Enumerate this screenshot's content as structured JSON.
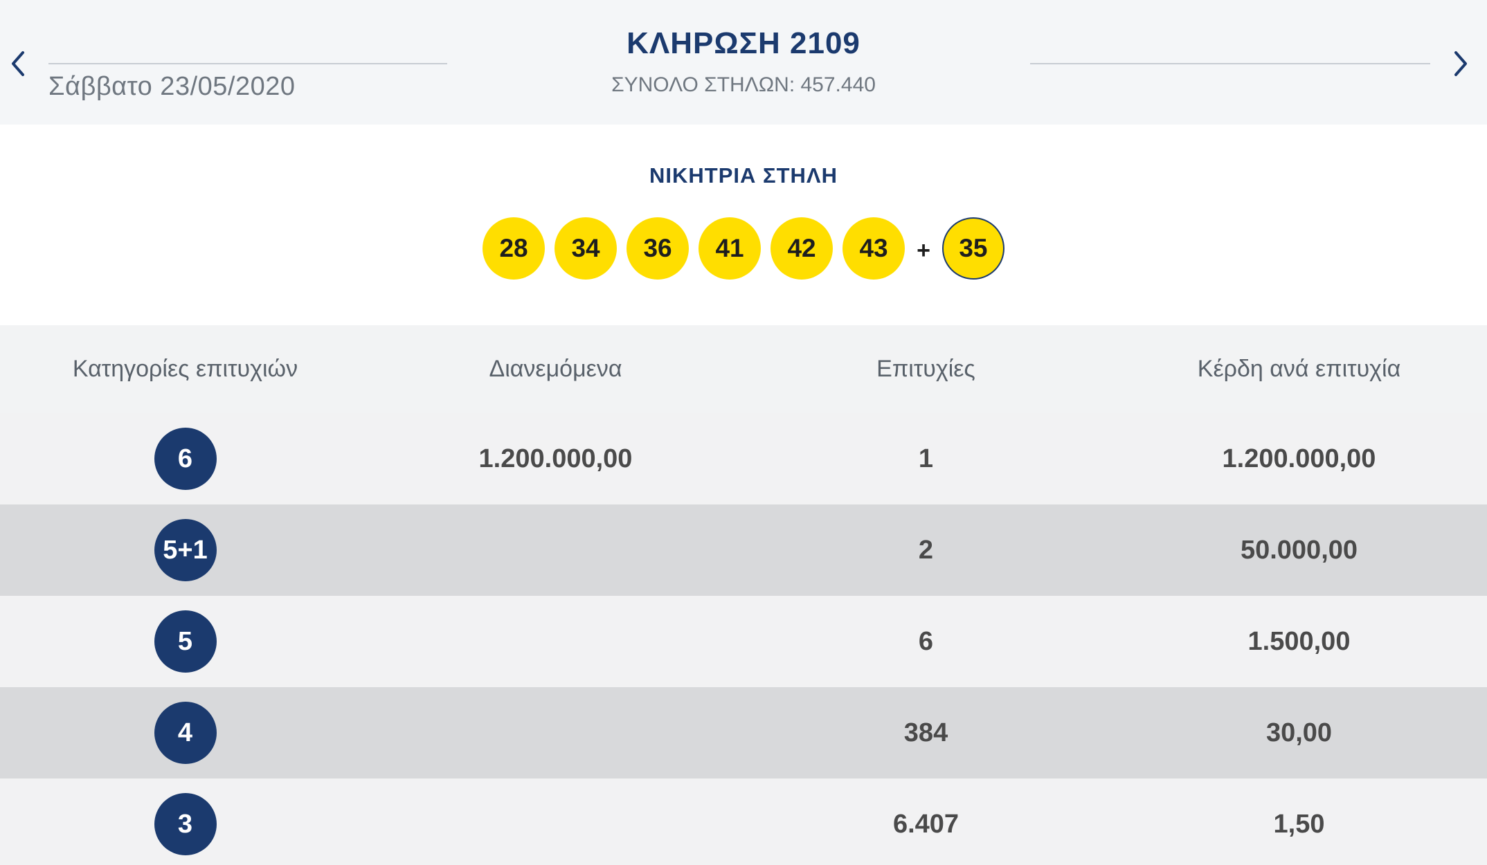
{
  "header": {
    "prev_icon": "chevron-left-icon",
    "next_icon": "chevron-right-icon",
    "date": "Σάββατο 23/05/2020",
    "title": "ΚΛΗΡΩΣΗ 2109",
    "total_columns": "ΣΥΝΟΛΟ ΣΤΗΛΩΝ: 457.440"
  },
  "winning": {
    "label": "ΝΙΚΗΤΡΙΑ ΣΤΗΛΗ",
    "numbers": [
      "28",
      "34",
      "36",
      "41",
      "42",
      "43"
    ],
    "plus": "+",
    "bonus": "35"
  },
  "table": {
    "headers": [
      "Κατηγορίες επιτυχιών",
      "Διανεμόμενα",
      "Επιτυχίες",
      "Κέρδη ανά επιτυχία"
    ],
    "rows": [
      {
        "category": "6",
        "distributed": "1.200.000,00",
        "winners": "1",
        "prize": "1.200.000,00"
      },
      {
        "category": "5+1",
        "distributed": "",
        "winners": "2",
        "prize": "50.000,00"
      },
      {
        "category": "5",
        "distributed": "",
        "winners": "6",
        "prize": "1.500,00"
      },
      {
        "category": "4",
        "distributed": "",
        "winners": "384",
        "prize": "30,00"
      },
      {
        "category": "3",
        "distributed": "",
        "winners": "6.407",
        "prize": "1,50"
      }
    ]
  },
  "colors": {
    "brand_navy": "#1b3a6e",
    "ball_yellow": "#ffde00"
  }
}
